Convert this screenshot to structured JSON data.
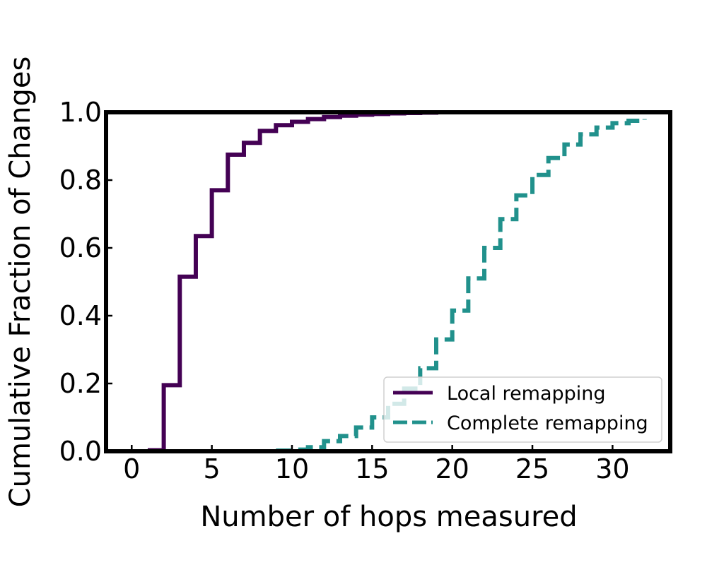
{
  "chart_data": {
    "type": "line",
    "step": "post",
    "xlabel": "Number of hops measured",
    "ylabel": "Cumulative Fraction of Changes",
    "xlim": [
      -1.6,
      33.6
    ],
    "ylim": [
      0,
      1
    ],
    "xticks": [
      "0",
      "5",
      "10",
      "15",
      "20",
      "25",
      "30"
    ],
    "xtick_values": [
      0,
      5,
      10,
      15,
      20,
      25,
      30
    ],
    "yticks": [
      "0.0",
      "0.2",
      "0.4",
      "0.6",
      "0.8",
      "1.0"
    ],
    "ytick_values": [
      0,
      0.2,
      0.4,
      0.6,
      0.8,
      1.0
    ],
    "grid": false,
    "legend_position": "lower-right",
    "series": [
      {
        "name": "Local remapping",
        "color": "#440154",
        "dash": "solid",
        "x": [
          1,
          2,
          3,
          4,
          5,
          6,
          7,
          8,
          9,
          10,
          11,
          12,
          13,
          14,
          15,
          16,
          17,
          18,
          19,
          20
        ],
        "y": [
          0.003,
          0.195,
          0.515,
          0.635,
          0.77,
          0.875,
          0.91,
          0.945,
          0.962,
          0.972,
          0.98,
          0.986,
          0.99,
          0.993,
          0.995,
          0.997,
          0.998,
          0.999,
          1.0,
          1.0
        ]
      },
      {
        "name": "Complete remapping",
        "color": "#21918c",
        "dash": "dashed",
        "x": [
          9,
          10,
          11,
          12,
          13,
          14,
          15,
          16,
          17,
          18,
          19,
          20,
          21,
          22,
          23,
          24,
          25,
          26,
          27,
          28,
          29,
          30,
          31,
          32
        ],
        "y": [
          0.002,
          0.005,
          0.012,
          0.03,
          0.045,
          0.07,
          0.1,
          0.14,
          0.185,
          0.245,
          0.33,
          0.415,
          0.51,
          0.6,
          0.685,
          0.755,
          0.815,
          0.865,
          0.905,
          0.935,
          0.955,
          0.968,
          0.975,
          0.98
        ]
      }
    ]
  }
}
